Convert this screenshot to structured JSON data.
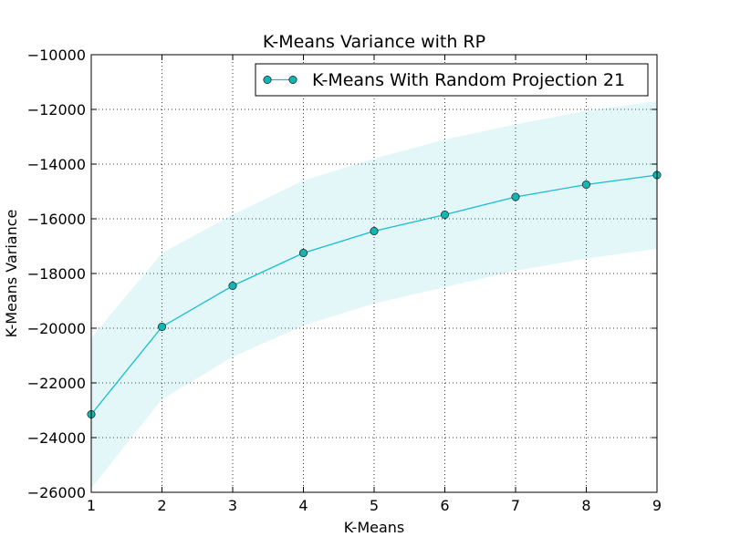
{
  "chart_data": {
    "type": "line",
    "title": "K-Means Variance with RP",
    "xlabel": "K-Means",
    "ylabel": "K-Means Variance",
    "xlim": [
      1,
      9
    ],
    "ylim": [
      -26000,
      -10000
    ],
    "xticks": [
      1,
      2,
      3,
      4,
      5,
      6,
      7,
      8,
      9
    ],
    "yticks": [
      -26000,
      -24000,
      -22000,
      -20000,
      -18000,
      -16000,
      -14000,
      -12000,
      -10000
    ],
    "grid": true,
    "legend": "upper right",
    "series": [
      {
        "name": "K-Means With Random Projection 21",
        "color": "#17becf",
        "marker": "circle",
        "x": [
          1,
          2,
          3,
          4,
          5,
          6,
          7,
          8,
          9
        ],
        "y": [
          -23150,
          -19950,
          -18450,
          -17250,
          -16450,
          -15850,
          -15200,
          -14750,
          -14400
        ],
        "band_upper": [
          -20350,
          -17250,
          -15850,
          -14600,
          -13800,
          -13100,
          -12550,
          -12050,
          -11700
        ],
        "band_lower": [
          -25850,
          -22600,
          -21050,
          -19900,
          -19100,
          -18500,
          -17900,
          -17450,
          -17100
        ]
      }
    ]
  }
}
